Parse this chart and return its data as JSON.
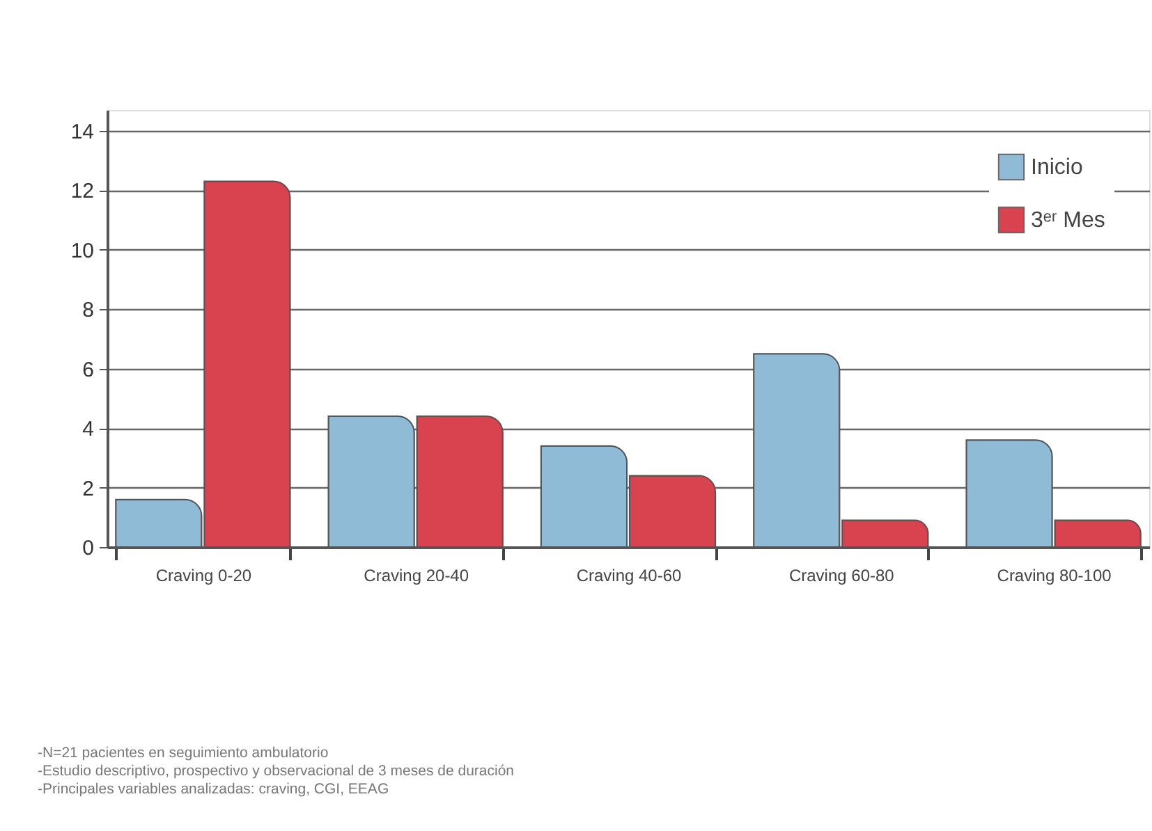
{
  "chart_data": {
    "type": "bar",
    "categories": [
      "Craving 0-20",
      "Craving 20-40",
      "Craving 40-60",
      "Craving 60-80",
      "Craving 80-100"
    ],
    "series": [
      {
        "name": "Inicio",
        "color": "#8fbbd7",
        "values": [
          1.6,
          4.4,
          3.4,
          6.5,
          3.6
        ]
      },
      {
        "name": "3ᵉʳ Mes",
        "color": "#d9434f",
        "values": [
          12.3,
          4.4,
          2.4,
          0.9,
          0.9
        ]
      }
    ],
    "ylim": [
      0,
      14.7
    ],
    "yticks": [
      0,
      2,
      4,
      6,
      8,
      10,
      12,
      14
    ],
    "grid": "y",
    "legend": "top right",
    "annotations": [
      "-N=21 pacientes en seguimiento ambulatorio",
      "-Estudio descriptivo, prospectivo y observacional de 3 meses de duración",
      "-Principales variables analizadas: craving, CGI, EEAG"
    ]
  }
}
